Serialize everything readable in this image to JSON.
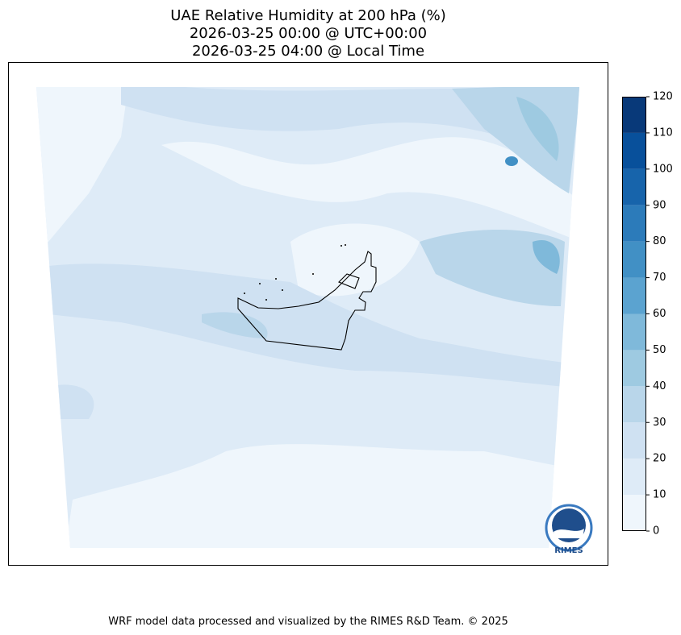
{
  "title": [
    "UAE Relative Humidity at 200 hPa (%)",
    "2026-03-25 00:00 @ UTC+00:00",
    "2026-03-25 04:00 @ Local Time"
  ],
  "colorbar": {
    "lim": [
      0,
      120
    ],
    "ticks": [
      0,
      10,
      20,
      30,
      40,
      50,
      60,
      70,
      80,
      90,
      100,
      110,
      120
    ],
    "colors": [
      "#eff6fc",
      "#deebf7",
      "#cfe1f2",
      "#b9d6ea",
      "#9ecae1",
      "#7fb9da",
      "#5ba3d0",
      "#4190c5",
      "#2c7bba",
      "#1764ab",
      "#08509b",
      "#083979"
    ]
  },
  "logo": "RIMES",
  "footer": "WRF model data processed and visualized by the RIMES R&D Team. © 2025"
}
